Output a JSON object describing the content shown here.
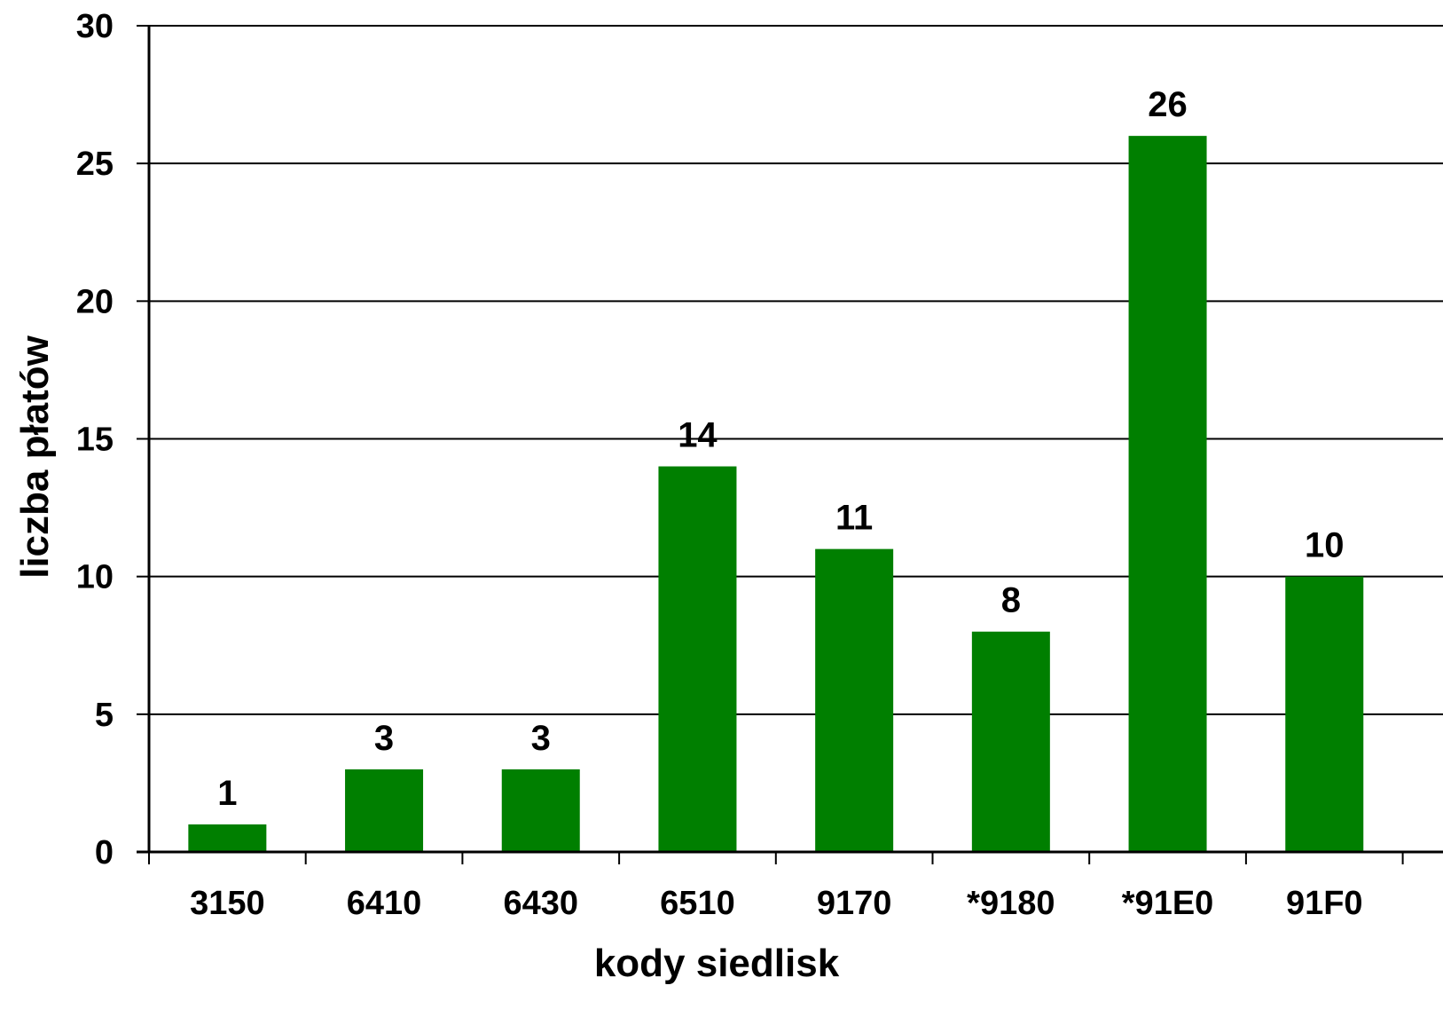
{
  "chart_data": {
    "type": "bar",
    "title": "",
    "xlabel": "kody siedlisk",
    "ylabel": "liczba płatów",
    "categories": [
      "3150",
      "6410",
      "6430",
      "6510",
      "9170",
      "*9180",
      "*91E0",
      "91F0"
    ],
    "values": [
      1,
      3,
      3,
      14,
      11,
      8,
      26,
      10
    ],
    "ylim": [
      0,
      30
    ],
    "yticks": [
      "0",
      "5",
      "10",
      "15",
      "20",
      "25",
      "30"
    ],
    "grid": true,
    "legend": "none",
    "bar_color": "#007f00"
  }
}
